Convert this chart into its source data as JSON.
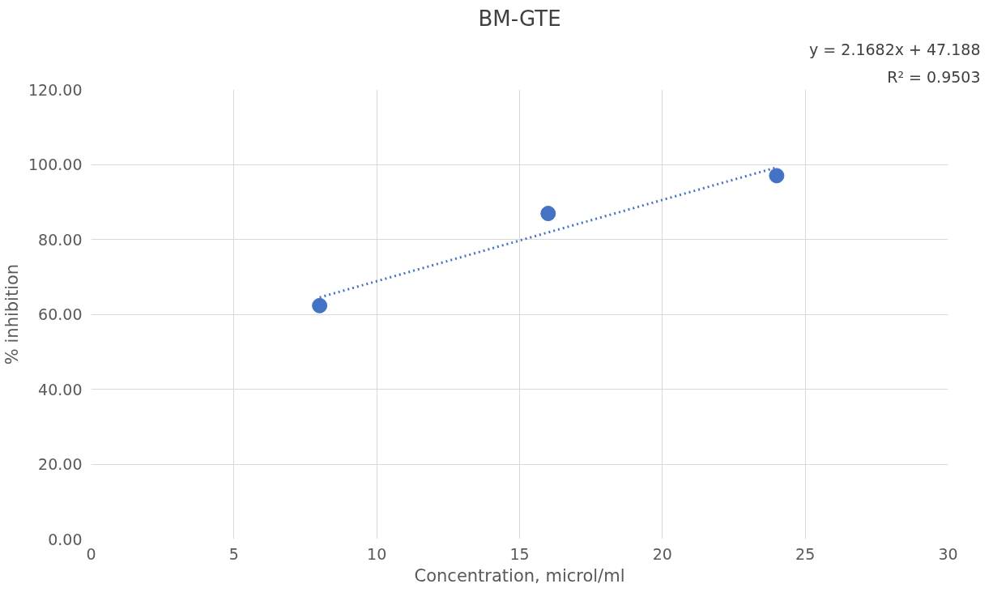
{
  "chart_data": {
    "type": "scatter",
    "title": "BM-GTE",
    "xlabel": "Concentration, microl/ml",
    "ylabel": "% inhibition",
    "annotations": [
      "y = 2.1682x + 47.188",
      "R² = 0.9503"
    ],
    "xlim": [
      0,
      30
    ],
    "xticks": [
      0,
      5,
      10,
      15,
      20,
      25,
      30
    ],
    "ylim": [
      0,
      120
    ],
    "yticks": [
      {
        "value": 0,
        "label": "0.00"
      },
      {
        "value": 20,
        "label": "20.00"
      },
      {
        "value": 40,
        "label": "40.00"
      },
      {
        "value": 60,
        "label": "60.00"
      },
      {
        "value": 80,
        "label": "80.00"
      },
      {
        "value": 100,
        "label": "100.00"
      },
      {
        "value": 120,
        "label": "120.00"
      }
    ],
    "grid": true,
    "series": [
      {
        "color": "#4472c4",
        "marker": "circle",
        "x": [
          8,
          16,
          24
        ],
        "values": [
          62.3,
          86.9,
          97.0
        ]
      },
      {
        "type": "line",
        "color": "#4472c4",
        "marker": "none",
        "line_style": "dotted",
        "x": [
          8,
          24
        ],
        "values": [
          64.5,
          99.2
        ]
      }
    ]
  }
}
